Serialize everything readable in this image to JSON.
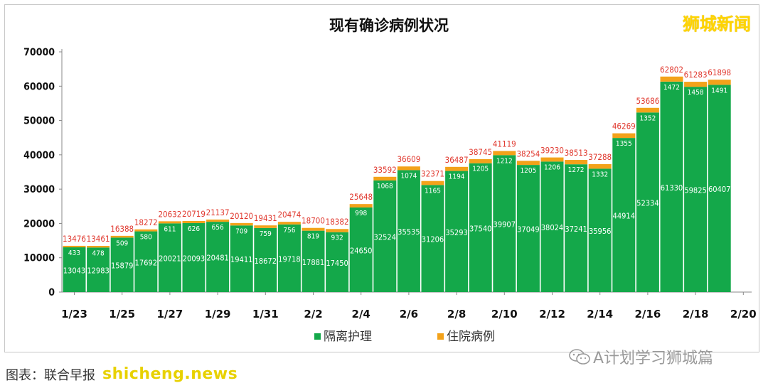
{
  "brand_watermark": "狮城新闻",
  "wechat_watermark": "A计划学习狮城篇",
  "source_label": "图表：联合早报",
  "site_watermark": "shicheng.news",
  "colors": {
    "isolation": "#14a84a",
    "hospital": "#f3a21a",
    "total_label": "#e0382e",
    "inbar_label": "#ffffff"
  },
  "chart_data": {
    "type": "bar",
    "stacked": true,
    "title": "现有确诊病例状况",
    "categories": [
      "1/23",
      "1/24",
      "1/25",
      "1/26",
      "1/27",
      "1/28",
      "1/29",
      "1/30",
      "1/31",
      "2/1",
      "2/2",
      "2/3",
      "2/4",
      "2/5",
      "2/6",
      "2/7",
      "2/8",
      "2/9",
      "2/10",
      "2/11",
      "2/12",
      "2/13",
      "2/14",
      "2/15",
      "2/16",
      "2/17",
      "2/18",
      "2/19"
    ],
    "x_tick_labels": [
      "1/23",
      "1/25",
      "1/27",
      "1/29",
      "1/31",
      "2/2",
      "2/4",
      "2/6",
      "2/8",
      "2/10",
      "2/12",
      "2/14",
      "2/16",
      "2/18",
      "2/20"
    ],
    "series": [
      {
        "name": "隔离护理",
        "values": [
          13043,
          12983,
          15879,
          17692,
          20021,
          20093,
          20481,
          19411,
          18672,
          19718,
          17881,
          17450,
          24650,
          32524,
          35535,
          31206,
          35293,
          37540,
          39907,
          37049,
          38024,
          37241,
          35956,
          44914,
          52334,
          61330,
          59825,
          60407
        ]
      },
      {
        "name": "住院病例",
        "values": [
          433,
          478,
          509,
          580,
          611,
          626,
          656,
          709,
          759,
          756,
          819,
          932,
          998,
          1068,
          1074,
          1165,
          1194,
          1205,
          1212,
          1205,
          1206,
          1272,
          1332,
          1355,
          1352,
          1472,
          1458,
          1491
        ]
      }
    ],
    "totals": [
      13476,
      13461,
      16388,
      18272,
      20632,
      20719,
      21137,
      20120,
      19431,
      20474,
      18700,
      18382,
      25648,
      33592,
      36609,
      32371,
      36487,
      38745,
      41119,
      38254,
      39230,
      38513,
      37288,
      46269,
      53686,
      62802,
      61283,
      61898
    ],
    "yticks": [
      0,
      10000,
      20000,
      30000,
      40000,
      50000,
      60000,
      70000
    ],
    "ylim": [
      0,
      70000
    ],
    "grid": false,
    "legend": "bottom-center"
  }
}
